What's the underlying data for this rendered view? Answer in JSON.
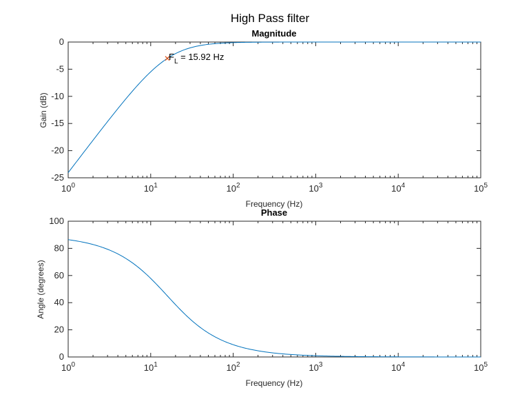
{
  "figure_title": "High Pass filter",
  "colors": {
    "line": "#0072BD",
    "axis": "#262626",
    "marker": "#D95319"
  },
  "chart_data": [
    {
      "type": "line",
      "title": "Magnitude",
      "xlabel": "Frequency (Hz)",
      "ylabel": "Gain (dB)",
      "xscale": "log",
      "xlim": [
        1,
        100000
      ],
      "ylim": [
        -25,
        0
      ],
      "x_ticks": [
        1,
        10,
        100,
        1000,
        10000,
        100000
      ],
      "y_ticks": [
        0,
        -5,
        -10,
        -15,
        -20,
        -25
      ],
      "y_tick_labels": [
        "0",
        "-5",
        "-10",
        "-15",
        "-20",
        "-25"
      ],
      "grid": false,
      "series": [
        {
          "formula": "20*log10(f/sqrt(f^2+15.92^2))",
          "x": [
            1,
            2,
            3,
            5,
            7,
            10,
            15.92,
            20,
            30,
            50,
            70,
            100,
            200,
            500,
            1000,
            10000,
            100000
          ],
          "y": [
            -24.04,
            -18.06,
            -14.62,
            -10.46,
            -7.87,
            -5.45,
            -3.01,
            -2.11,
            -1.06,
            -0.41,
            -0.22,
            -0.11,
            -0.03,
            0,
            0,
            0,
            0
          ]
        }
      ],
      "annotation": {
        "x": 15.92,
        "y": -3.01,
        "label_main": "F",
        "label_sub": "L",
        "label_rest": " = 15.92 Hz"
      }
    },
    {
      "type": "line",
      "title": "Phase",
      "xlabel": "Frequency (Hz)",
      "ylabel": "Angle (degrees)",
      "xscale": "log",
      "xlim": [
        1,
        100000
      ],
      "ylim": [
        0,
        100
      ],
      "x_ticks": [
        1,
        10,
        100,
        1000,
        10000,
        100000
      ],
      "y_ticks": [
        0,
        20,
        40,
        60,
        80,
        100
      ],
      "y_tick_labels": [
        "0",
        "20",
        "40",
        "60",
        "80",
        "100"
      ],
      "grid": false,
      "series": [
        {
          "formula": "atan(15.92/f) in degrees",
          "x": [
            1,
            2,
            3,
            5,
            7,
            10,
            15.92,
            20,
            30,
            50,
            70,
            100,
            200,
            500,
            1000,
            10000,
            100000
          ],
          "y": [
            86.41,
            82.84,
            79.33,
            72.56,
            66.26,
            57.87,
            45.0,
            38.52,
            27.95,
            17.66,
            12.81,
            9.05,
            4.55,
            1.82,
            0.91,
            0.09,
            0.01
          ]
        }
      ]
    }
  ]
}
